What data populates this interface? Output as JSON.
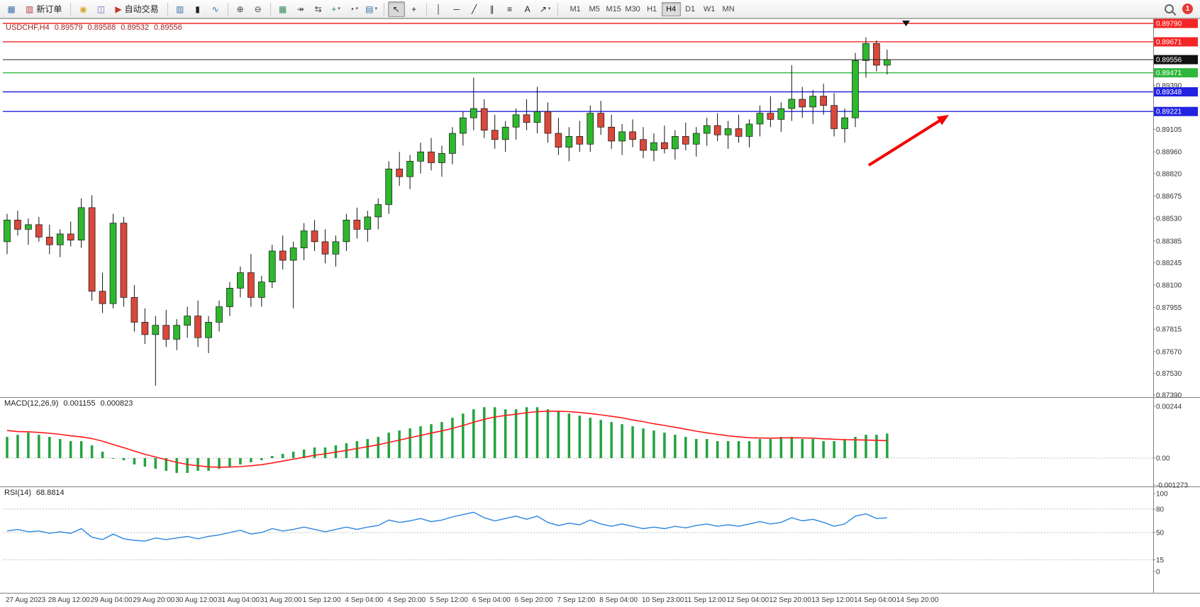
{
  "toolbar": {
    "items": [
      {
        "type": "icon",
        "name": "new-chart-icon",
        "glyph": "▦",
        "color": "#3b6ea5"
      },
      {
        "type": "button",
        "name": "new-order-button",
        "label": "新订单",
        "icon": {
          "name": "order-ticket-icon",
          "glyph": "▥",
          "color": "#b23b3b"
        }
      },
      {
        "type": "sep"
      },
      {
        "type": "icon",
        "name": "market-watch-icon",
        "glyph": "◉",
        "color": "#d9a326"
      },
      {
        "type": "icon",
        "name": "data-window-icon",
        "glyph": "◫",
        "color": "#7a5fb5"
      },
      {
        "type": "button",
        "name": "autotrading-button",
        "label": "自动交易",
        "icon": {
          "name": "autotrading-play-icon",
          "glyph": "▶",
          "color": "#c0392b"
        }
      },
      {
        "type": "sep"
      },
      {
        "type": "icon",
        "name": "bar-chart-mode-icon",
        "glyph": "▥",
        "color": "#3b6ea5"
      },
      {
        "type": "icon",
        "name": "candlestick-mode-icon",
        "glyph": "▮",
        "color": "#222222"
      },
      {
        "type": "icon",
        "name": "line-chart-mode-icon",
        "glyph": "∿",
        "color": "#3b6ea5"
      },
      {
        "type": "sep"
      },
      {
        "type": "icon",
        "name": "zoom-in-icon",
        "glyph": "⊕",
        "color": "#444444"
      },
      {
        "type": "icon",
        "name": "zoom-out-icon",
        "glyph": "⊖",
        "color": "#444444"
      },
      {
        "type": "sep"
      },
      {
        "type": "icon",
        "name": "tile-windows-icon",
        "glyph": "▦",
        "color": "#2e8b57"
      },
      {
        "type": "icon",
        "name": "auto-scroll-icon",
        "glyph": "↠",
        "color": "#444444"
      },
      {
        "type": "icon",
        "name": "chart-shift-icon",
        "glyph": "⇆",
        "color": "#444444"
      },
      {
        "type": "icon",
        "name": "indicators-icon",
        "glyph": "+",
        "color": "#2e8b57",
        "dropdown": true
      },
      {
        "type": "icon",
        "name": "periods-icon",
        "glyph": "◔",
        "color": "#444444",
        "dropdown": true
      },
      {
        "type": "icon",
        "name": "templates-icon",
        "glyph": "▤",
        "color": "#3b6ea5",
        "dropdown": true
      },
      {
        "type": "sep"
      },
      {
        "type": "icon",
        "name": "cursor-icon",
        "glyph": "↖",
        "color": "#222222",
        "pressed": true
      },
      {
        "type": "icon",
        "name": "crosshair-icon",
        "glyph": "+",
        "color": "#222222"
      },
      {
        "type": "sep"
      },
      {
        "type": "icon",
        "name": "vertical-line-icon",
        "glyph": "│",
        "color": "#222222"
      },
      {
        "type": "icon",
        "name": "horizontal-line-icon",
        "glyph": "─",
        "color": "#222222"
      },
      {
        "type": "icon",
        "name": "trendline-icon",
        "glyph": "╱",
        "color": "#222222"
      },
      {
        "type": "icon",
        "name": "equidistant-channel-icon",
        "glyph": "∥",
        "color": "#222222"
      },
      {
        "type": "icon",
        "name": "fibonacci-icon",
        "glyph": "≡",
        "color": "#222222"
      },
      {
        "type": "icon",
        "name": "text-label-icon",
        "glyph": "A",
        "color": "#222222"
      },
      {
        "type": "icon",
        "name": "arrows-icon",
        "glyph": "↗",
        "color": "#222222",
        "dropdown": true
      },
      {
        "type": "sep"
      }
    ],
    "timeframes": [
      "M1",
      "M5",
      "M15",
      "M30",
      "H1",
      "H4",
      "D1",
      "W1",
      "MN"
    ],
    "active_timeframe": "H4",
    "notification_count": "1"
  },
  "chart": {
    "symbol_info": {
      "symbol": "USDCHF,H4",
      "open": "0.89579",
      "high": "0.89588",
      "low": "0.89532",
      "close": "0.89556"
    }
  },
  "macd_panel": {
    "scale_labels": [
      "0.00244",
      "0.00",
      "-0.001273"
    ]
  },
  "rsi_panel": {
    "scale_labels": [
      "100",
      "80",
      "50",
      "15",
      "0"
    ]
  },
  "chart_data": [
    {
      "type": "candlestick",
      "title": "USDCHF,H4",
      "ylim": [
        0.8739,
        0.8979
      ],
      "current_price": {
        "value": 0.89556,
        "label": "0.89556"
      },
      "lines": [
        {
          "name": "resistance-line-upper",
          "label": "0.89790",
          "value": 0.8979,
          "color": "#f42525"
        },
        {
          "name": "resistance-line-lower",
          "label": "0.89671",
          "value": 0.89671,
          "color": "#f42525"
        },
        {
          "name": "support-line-green",
          "label": "0.89471",
          "value": 0.89471,
          "color": "#2fb73d"
        },
        {
          "name": "support-line-blue-upper",
          "label": "0.89348",
          "value": 0.89348,
          "color": "#2222e0"
        },
        {
          "name": "support-line-blue-lower",
          "label": "0.89221",
          "value": 0.89221,
          "color": "#2222e0"
        }
      ],
      "y_ticks": [
        {
          "label": "0.89390",
          "value": 0.8939
        },
        {
          "label": "0.89105",
          "value": 0.89105
        },
        {
          "label": "0.88960",
          "value": 0.8896
        },
        {
          "label": "0.88820",
          "value": 0.8882
        },
        {
          "label": "0.88675",
          "value": 0.88675
        },
        {
          "label": "0.88530",
          "value": 0.8853
        },
        {
          "label": "0.88385",
          "value": 0.88385
        },
        {
          "label": "0.88245",
          "value": 0.88245
        },
        {
          "label": "0.88100",
          "value": 0.881
        },
        {
          "label": "0.87955",
          "value": 0.87955
        },
        {
          "label": "0.87815",
          "value": 0.87815
        },
        {
          "label": "0.87670",
          "value": 0.8767
        },
        {
          "label": "0.87530",
          "value": 0.8753
        },
        {
          "label": "0.87390",
          "value": 0.8739
        }
      ],
      "x_labels": [
        "27 Aug 2023",
        "28 Aug 12:00",
        "29 Aug 04:00",
        "29 Aug 20:00",
        "30 Aug 12:00",
        "31 Aug 04:00",
        "31 Aug 20:00",
        "1 Sep 12:00",
        "4 Sep 04:00",
        "4 Sep 20:00",
        "5 Sep 12:00",
        "6 Sep 04:00",
        "6 Sep 20:00",
        "7 Sep 12:00",
        "8 Sep 04:00",
        "10 Sep 23:00",
        "11 Sep 12:00",
        "12 Sep 04:00",
        "12 Sep 20:00",
        "13 Sep 12:00",
        "14 Sep 04:00",
        "14 Sep 20:00"
      ],
      "annotations": [
        {
          "type": "arrow",
          "name": "trend-arrow",
          "direction": "up-right",
          "color": "#f30000"
        }
      ],
      "colors": {
        "up": "#2eb82e",
        "down": "#d9483b",
        "wick": "#111111"
      },
      "ohlc": [
        [
          0.8838,
          0.8856,
          0.883,
          0.8852
        ],
        [
          0.8852,
          0.8858,
          0.8842,
          0.8846
        ],
        [
          0.8846,
          0.8853,
          0.8836,
          0.8849
        ],
        [
          0.8849,
          0.8854,
          0.8838,
          0.8841
        ],
        [
          0.8841,
          0.8849,
          0.883,
          0.8836
        ],
        [
          0.8836,
          0.8846,
          0.8828,
          0.8843
        ],
        [
          0.8843,
          0.8851,
          0.8835,
          0.8839
        ],
        [
          0.8839,
          0.8866,
          0.8834,
          0.886
        ],
        [
          0.886,
          0.8868,
          0.88,
          0.8806
        ],
        [
          0.8806,
          0.8818,
          0.8792,
          0.8798
        ],
        [
          0.8798,
          0.8856,
          0.8795,
          0.885
        ],
        [
          0.885,
          0.8854,
          0.8796,
          0.8802
        ],
        [
          0.8802,
          0.881,
          0.878,
          0.8786
        ],
        [
          0.8786,
          0.8795,
          0.8772,
          0.8778
        ],
        [
          0.8778,
          0.879,
          0.8745,
          0.8784
        ],
        [
          0.8784,
          0.8794,
          0.877,
          0.8775
        ],
        [
          0.8775,
          0.8788,
          0.8768,
          0.8784
        ],
        [
          0.8784,
          0.8796,
          0.8776,
          0.879
        ],
        [
          0.879,
          0.88,
          0.877,
          0.8776
        ],
        [
          0.8776,
          0.879,
          0.8766,
          0.8786
        ],
        [
          0.8786,
          0.88,
          0.878,
          0.8796
        ],
        [
          0.8796,
          0.8812,
          0.879,
          0.8808
        ],
        [
          0.8808,
          0.8822,
          0.8802,
          0.8818
        ],
        [
          0.8818,
          0.883,
          0.8796,
          0.8802
        ],
        [
          0.8802,
          0.8816,
          0.8796,
          0.8812
        ],
        [
          0.8812,
          0.8836,
          0.8808,
          0.8832
        ],
        [
          0.8832,
          0.8842,
          0.882,
          0.8826
        ],
        [
          0.8826,
          0.8838,
          0.8795,
          0.8834
        ],
        [
          0.8834,
          0.885,
          0.8826,
          0.8845
        ],
        [
          0.8845,
          0.8852,
          0.8832,
          0.8838
        ],
        [
          0.8838,
          0.8846,
          0.8824,
          0.883
        ],
        [
          0.883,
          0.8842,
          0.8822,
          0.8838
        ],
        [
          0.8838,
          0.8856,
          0.8832,
          0.8852
        ],
        [
          0.8852,
          0.886,
          0.884,
          0.8846
        ],
        [
          0.8846,
          0.8858,
          0.8838,
          0.8854
        ],
        [
          0.8854,
          0.8866,
          0.8846,
          0.8862
        ],
        [
          0.8862,
          0.889,
          0.8856,
          0.8885
        ],
        [
          0.8885,
          0.8896,
          0.8874,
          0.888
        ],
        [
          0.888,
          0.8894,
          0.8872,
          0.889
        ],
        [
          0.889,
          0.8902,
          0.8882,
          0.8896
        ],
        [
          0.8896,
          0.8905,
          0.8884,
          0.8889
        ],
        [
          0.8889,
          0.89,
          0.888,
          0.8895
        ],
        [
          0.8895,
          0.8912,
          0.8888,
          0.8908
        ],
        [
          0.8908,
          0.8922,
          0.89,
          0.8918
        ],
        [
          0.8918,
          0.8944,
          0.891,
          0.8924
        ],
        [
          0.8924,
          0.893,
          0.8905,
          0.891
        ],
        [
          0.891,
          0.892,
          0.8898,
          0.8904
        ],
        [
          0.8904,
          0.8916,
          0.8896,
          0.8912
        ],
        [
          0.8912,
          0.8924,
          0.8904,
          0.892
        ],
        [
          0.892,
          0.893,
          0.891,
          0.8915
        ],
        [
          0.8915,
          0.8938,
          0.8908,
          0.8922
        ],
        [
          0.8922,
          0.8928,
          0.8902,
          0.8908
        ],
        [
          0.8908,
          0.8918,
          0.8894,
          0.8899
        ],
        [
          0.8899,
          0.8912,
          0.889,
          0.8906
        ],
        [
          0.8906,
          0.8916,
          0.8896,
          0.8901
        ],
        [
          0.8901,
          0.8926,
          0.8896,
          0.8921
        ],
        [
          0.8921,
          0.8929,
          0.8907,
          0.8912
        ],
        [
          0.8912,
          0.892,
          0.8898,
          0.8903
        ],
        [
          0.8903,
          0.8914,
          0.8894,
          0.8909
        ],
        [
          0.8909,
          0.8917,
          0.8899,
          0.8904
        ],
        [
          0.8904,
          0.8912,
          0.8892,
          0.8897
        ],
        [
          0.8897,
          0.8908,
          0.889,
          0.8902
        ],
        [
          0.8902,
          0.8913,
          0.8895,
          0.8898
        ],
        [
          0.8898,
          0.891,
          0.8891,
          0.8906
        ],
        [
          0.8906,
          0.8915,
          0.8897,
          0.8901
        ],
        [
          0.8901,
          0.8912,
          0.8893,
          0.8908
        ],
        [
          0.8908,
          0.8918,
          0.89,
          0.8913
        ],
        [
          0.8913,
          0.8921,
          0.8903,
          0.8907
        ],
        [
          0.8907,
          0.8916,
          0.8898,
          0.8911
        ],
        [
          0.8911,
          0.892,
          0.8902,
          0.8906
        ],
        [
          0.8906,
          0.8917,
          0.8899,
          0.8914
        ],
        [
          0.8914,
          0.8926,
          0.8906,
          0.8921
        ],
        [
          0.8921,
          0.8932,
          0.8912,
          0.8917
        ],
        [
          0.8917,
          0.8928,
          0.8909,
          0.8924
        ],
        [
          0.8924,
          0.8952,
          0.8916,
          0.893
        ],
        [
          0.893,
          0.8938,
          0.8918,
          0.8925
        ],
        [
          0.8925,
          0.8936,
          0.8914,
          0.8932
        ],
        [
          0.8932,
          0.894,
          0.892,
          0.8926
        ],
        [
          0.8926,
          0.8934,
          0.8906,
          0.8911
        ],
        [
          0.8911,
          0.8924,
          0.8902,
          0.8918
        ],
        [
          0.8918,
          0.896,
          0.8912,
          0.8955
        ],
        [
          0.8955,
          0.897,
          0.8944,
          0.8966
        ],
        [
          0.8966,
          0.8968,
          0.8948,
          0.8952
        ],
        [
          0.8952,
          0.8962,
          0.8946,
          0.89556
        ]
      ]
    },
    {
      "type": "bar",
      "name": "MACD(12,26,9)",
      "last_values": {
        "main": "0.001155",
        "signal": "0.000823"
      },
      "ylim": [
        -0.001273,
        0.00244
      ],
      "colors": {
        "histogram": "#22a33e",
        "signal": "#ff1a1a"
      },
      "values": [
        0.001,
        0.0011,
        0.0012,
        0.0011,
        0.001,
        0.0009,
        0.0008,
        0.0008,
        0.0006,
        0.0003,
        0.0,
        -0.0001,
        -0.0003,
        -0.0004,
        -0.0005,
        -0.0006,
        -0.0007,
        -0.0007,
        -0.0006,
        -0.0006,
        -0.0005,
        -0.0004,
        -0.0003,
        -0.0002,
        -0.0001,
        0.0001,
        0.0002,
        0.0003,
        0.0004,
        0.0005,
        0.0005,
        0.0006,
        0.0007,
        0.0008,
        0.0009,
        0.001,
        0.0012,
        0.0013,
        0.0014,
        0.0015,
        0.0016,
        0.0017,
        0.0019,
        0.0021,
        0.0023,
        0.0024,
        0.0024,
        0.0023,
        0.0023,
        0.0024,
        0.0024,
        0.0023,
        0.0022,
        0.0021,
        0.002,
        0.0019,
        0.0018,
        0.0017,
        0.0016,
        0.0015,
        0.0014,
        0.0013,
        0.0012,
        0.0011,
        0.001,
        0.0009,
        0.0009,
        0.0008,
        0.0008,
        0.0008,
        0.0008,
        0.0009,
        0.0009,
        0.001,
        0.001,
        0.0009,
        0.0009,
        0.0008,
        0.0008,
        0.0009,
        0.001,
        0.0011,
        0.0011,
        0.001155
      ],
      "signal": [
        0.0013,
        0.00125,
        0.00124,
        0.00121,
        0.00117,
        0.00112,
        0.00105,
        0.001,
        0.00092,
        0.0008,
        0.00064,
        0.00049,
        0.00033,
        0.00018,
        5e-05,
        -8e-05,
        -0.0002,
        -0.0003,
        -0.00036,
        -0.00041,
        -0.00043,
        -0.00042,
        -0.0004,
        -0.00036,
        -0.00031,
        -0.00023,
        -0.00014,
        -5e-05,
        4e-05,
        0.00013,
        0.0002,
        0.00028,
        0.00036,
        0.00045,
        0.00054,
        0.00063,
        0.00074,
        0.00085,
        0.00096,
        0.00107,
        0.00118,
        0.00128,
        0.0014,
        0.00154,
        0.00169,
        0.00183,
        0.00194,
        0.00201,
        0.00207,
        0.00214,
        0.00219,
        0.00221,
        0.00221,
        0.00219,
        0.00215,
        0.0021,
        0.00204,
        0.00197,
        0.0019,
        0.0018,
        0.00172,
        0.00162,
        0.00154,
        0.00145,
        0.00136,
        0.00127,
        0.00119,
        0.00112,
        0.00105,
        0.001,
        0.00096,
        0.00095,
        0.00094,
        0.00095,
        0.00096,
        0.00095,
        0.00094,
        0.00091,
        0.00089,
        0.00087,
        0.00086,
        0.00085,
        0.00084,
        0.000823
      ]
    },
    {
      "type": "line",
      "name": "RSI(14)",
      "last_value": "68.8814",
      "ylim": [
        0,
        100
      ],
      "levels": [
        80,
        50,
        15
      ],
      "color": "#2e86de",
      "values": [
        52,
        54,
        51,
        52,
        49,
        51,
        49,
        55,
        44,
        41,
        48,
        42,
        40,
        39,
        43,
        41,
        43,
        45,
        42,
        45,
        47,
        50,
        53,
        48,
        50,
        55,
        52,
        54,
        57,
        54,
        51,
        54,
        57,
        54,
        57,
        59,
        66,
        63,
        65,
        68,
        64,
        66,
        70,
        73,
        76,
        69,
        65,
        68,
        71,
        67,
        71,
        63,
        59,
        62,
        60,
        66,
        61,
        58,
        61,
        58,
        55,
        57,
        55,
        58,
        56,
        59,
        61,
        58,
        60,
        58,
        61,
        64,
        61,
        63,
        69,
        65,
        67,
        63,
        58,
        61,
        71,
        74,
        68,
        68.88
      ]
    }
  ]
}
